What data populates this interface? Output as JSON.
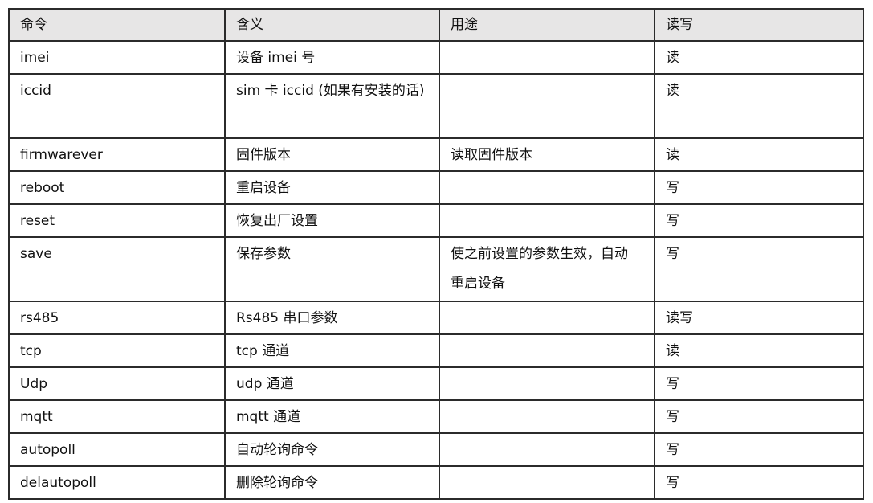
{
  "header": [
    "命令",
    "含义",
    "用途",
    "读写"
  ],
  "rows": [
    {
      "cmd": "imei",
      "meaning": "设备 imei 号",
      "use": "",
      "rw": "读"
    },
    {
      "cmd": "iccid",
      "meaning": "sim 卡 iccid (如果有安装的话)",
      "use": "",
      "rw": "读"
    },
    {
      "cmd": "firmwarever",
      "meaning": "固件版本",
      "use": "读取固件版本",
      "rw": "读"
    },
    {
      "cmd": "reboot",
      "meaning": "重启设备",
      "use": "",
      "rw": "写"
    },
    {
      "cmd": "reset",
      "meaning": "恢复出厂设置",
      "use": "",
      "rw": "写"
    },
    {
      "cmd": "save",
      "meaning": "保存参数",
      "use": "使之前设置的参数生效，自动 重启设备",
      "rw": "写"
    },
    {
      "cmd": "rs485",
      "meaning": "Rs485 串口参数",
      "use": "",
      "rw": "读写"
    },
    {
      "cmd": "tcp",
      "meaning": "tcp 通道",
      "use": "",
      "rw": "读"
    },
    {
      "cmd": "Udp",
      "meaning": "udp 通道",
      "use": "",
      "rw": "写"
    },
    {
      "cmd": "mqtt",
      "meaning": "mqtt 通道",
      "use": "",
      "rw": "写"
    },
    {
      "cmd": "autopoll",
      "meaning": "自动轮询命令",
      "use": "",
      "rw": "写"
    },
    {
      "cmd": "delautopoll",
      "meaning": "删除轮询命令",
      "use": "",
      "rw": "写"
    }
  ]
}
